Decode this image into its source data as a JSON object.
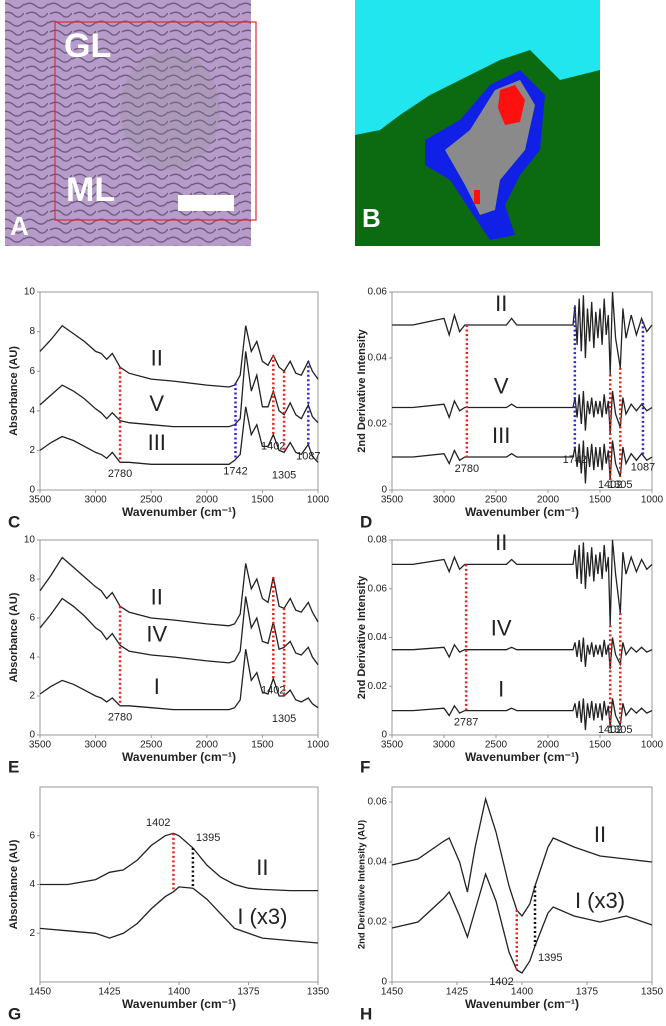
{
  "micrographs": [
    {
      "panel": "A",
      "labels": [
        "GL",
        "ML"
      ]
    },
    {
      "panel": "B"
    }
  ],
  "chart_data": [
    {
      "type": "line",
      "panel": "C",
      "xlabel": "Wavenumber (cm⁻¹)",
      "ylabel": "Absorbance (AU)",
      "xlim": [
        3500,
        1000
      ],
      "xticks": [
        3500,
        3000,
        2500,
        2000,
        1500,
        1000
      ],
      "ylim": [
        0,
        10
      ],
      "yticks": [
        0,
        2,
        4,
        6,
        8,
        10
      ],
      "x": [
        3500,
        3400,
        3300,
        3200,
        3100,
        3000,
        2950,
        2900,
        2850,
        2780,
        2700,
        2500,
        2300,
        2000,
        1800,
        1750,
        1700,
        1650,
        1600,
        1550,
        1500,
        1450,
        1402,
        1350,
        1305,
        1250,
        1200,
        1150,
        1087,
        1050,
        1000
      ],
      "series": [
        {
          "name": "II",
          "color": "#222222",
          "values": [
            7.0,
            7.6,
            8.3,
            7.9,
            7.5,
            7.0,
            6.9,
            6.6,
            6.9,
            6.2,
            5.9,
            5.6,
            5.5,
            5.3,
            5.2,
            5.3,
            5.8,
            8.3,
            7.0,
            7.5,
            6.5,
            6.3,
            6.8,
            6.2,
            6.0,
            6.5,
            5.9,
            5.8,
            6.5,
            6.0,
            5.6
          ]
        },
        {
          "name": "V",
          "color": "#222222",
          "values": [
            4.3,
            4.8,
            5.3,
            5.0,
            4.6,
            4.1,
            3.9,
            3.6,
            3.9,
            3.5,
            3.4,
            3.3,
            3.2,
            3.2,
            3.2,
            3.3,
            3.6,
            7.0,
            5.0,
            5.8,
            4.2,
            4.2,
            5.0,
            4.0,
            3.8,
            4.4,
            3.8,
            3.6,
            4.3,
            3.7,
            3.4
          ]
        },
        {
          "name": "III",
          "color": "#222222",
          "values": [
            2.0,
            2.4,
            2.7,
            2.5,
            2.2,
            1.9,
            1.8,
            1.6,
            1.9,
            1.4,
            1.4,
            1.3,
            1.3,
            1.3,
            1.3,
            1.5,
            1.8,
            4.2,
            2.8,
            3.3,
            2.2,
            2.2,
            2.8,
            2.0,
            1.9,
            2.4,
            1.9,
            1.8,
            2.3,
            1.7,
            1.4
          ]
        }
      ],
      "markers": [
        {
          "x": 2780,
          "color": "#e8221c"
        },
        {
          "x": 1742,
          "color": "#2a2ad0"
        },
        {
          "x": 1402,
          "color": "#e8221c"
        },
        {
          "x": 1305,
          "color": "#e8221c"
        },
        {
          "x": 1087,
          "color": "#2a2ad0"
        }
      ]
    },
    {
      "type": "line",
      "panel": "D",
      "xlabel": "Wavenumber (cm⁻¹)",
      "ylabel": "2nd Derivative Intensity",
      "xlim": [
        3500,
        1000
      ],
      "xticks": [
        3500,
        3000,
        2500,
        2000,
        1500,
        1000
      ],
      "ylim": [
        0,
        0.06
      ],
      "yticks": [
        0,
        0.02,
        0.04,
        0.06
      ],
      "x": [
        3500,
        3300,
        3000,
        2950,
        2900,
        2850,
        2800,
        2700,
        2400,
        2350,
        2300,
        2000,
        1760,
        1740,
        1720,
        1700,
        1680,
        1660,
        1640,
        1620,
        1600,
        1580,
        1560,
        1540,
        1520,
        1500,
        1480,
        1460,
        1440,
        1420,
        1402,
        1380,
        1350,
        1305,
        1280,
        1250,
        1200,
        1150,
        1100,
        1050,
        1000
      ],
      "series": [
        {
          "name": "II",
          "color": "#222222",
          "values": [
            0.05,
            0.05,
            0.052,
            0.047,
            0.053,
            0.048,
            0.05,
            0.05,
            0.05,
            0.052,
            0.05,
            0.05,
            0.05,
            0.056,
            0.044,
            0.058,
            0.042,
            0.059,
            0.04,
            0.055,
            0.045,
            0.057,
            0.043,
            0.054,
            0.046,
            0.055,
            0.044,
            0.058,
            0.047,
            0.053,
            0.035,
            0.06,
            0.046,
            0.037,
            0.055,
            0.046,
            0.053,
            0.047,
            0.052,
            0.048,
            0.05
          ]
        },
        {
          "name": "V",
          "color": "#222222",
          "values": [
            0.025,
            0.025,
            0.026,
            0.022,
            0.027,
            0.024,
            0.025,
            0.025,
            0.025,
            0.026,
            0.025,
            0.025,
            0.025,
            0.028,
            0.022,
            0.029,
            0.02,
            0.03,
            0.018,
            0.027,
            0.023,
            0.028,
            0.022,
            0.027,
            0.023,
            0.027,
            0.022,
            0.029,
            0.023,
            0.027,
            0.017,
            0.03,
            0.023,
            0.019,
            0.028,
            0.023,
            0.026,
            0.024,
            0.026,
            0.024,
            0.025
          ]
        },
        {
          "name": "III",
          "color": "#222222",
          "values": [
            0.01,
            0.01,
            0.011,
            0.008,
            0.012,
            0.009,
            0.01,
            0.01,
            0.01,
            0.011,
            0.01,
            0.01,
            0.01,
            0.013,
            0.007,
            0.014,
            0.005,
            0.015,
            0.002,
            0.013,
            0.007,
            0.014,
            0.006,
            0.013,
            0.007,
            0.013,
            0.006,
            0.014,
            0.008,
            0.012,
            0.003,
            0.015,
            0.008,
            0.004,
            0.013,
            0.008,
            0.011,
            0.009,
            0.011,
            0.009,
            0.01
          ]
        }
      ],
      "markers": [
        {
          "x": 2780,
          "color": "#e8221c"
        },
        {
          "x": 1742,
          "color": "#2a2ad0"
        },
        {
          "x": 1402,
          "color": "#e8221c"
        },
        {
          "x": 1305,
          "color": "#e8221c"
        },
        {
          "x": 1087,
          "color": "#2a2ad0"
        }
      ]
    },
    {
      "type": "line",
      "panel": "E",
      "xlabel": "Wavenumber (cm⁻¹)",
      "ylabel": "Absorbance (AU)",
      "xlim": [
        3500,
        1000
      ],
      "xticks": [
        3500,
        3000,
        2500,
        2000,
        1500,
        1000
      ],
      "ylim": [
        0,
        10
      ],
      "yticks": [
        0,
        2,
        4,
        6,
        8,
        10
      ],
      "x": [
        3500,
        3400,
        3300,
        3200,
        3100,
        3000,
        2950,
        2900,
        2850,
        2780,
        2700,
        2500,
        2300,
        2000,
        1800,
        1750,
        1700,
        1650,
        1600,
        1550,
        1500,
        1450,
        1402,
        1350,
        1305,
        1250,
        1200,
        1150,
        1087,
        1050,
        1000
      ],
      "series": [
        {
          "name": "II",
          "color": "#222222",
          "values": [
            7.4,
            8.2,
            9.1,
            8.6,
            8.1,
            7.6,
            7.4,
            7.0,
            7.3,
            6.6,
            6.3,
            6.0,
            5.9,
            5.7,
            5.6,
            5.7,
            6.2,
            8.8,
            7.5,
            8.0,
            7.0,
            6.8,
            8.1,
            6.6,
            6.5,
            7.0,
            6.4,
            6.3,
            6.8,
            6.3,
            5.8
          ]
        },
        {
          "name": "IV",
          "color": "#222222",
          "values": [
            5.5,
            6.2,
            7.0,
            6.6,
            6.1,
            5.5,
            5.3,
            4.9,
            5.2,
            4.6,
            4.3,
            4.1,
            4.0,
            3.8,
            3.7,
            3.8,
            4.3,
            7.1,
            5.5,
            6.0,
            4.8,
            4.7,
            5.8,
            4.4,
            4.5,
            4.8,
            4.2,
            4.1,
            4.5,
            4.0,
            3.6
          ]
        },
        {
          "name": "I",
          "color": "#222222",
          "values": [
            2.1,
            2.5,
            2.8,
            2.6,
            2.3,
            2.0,
            1.9,
            1.7,
            1.9,
            1.5,
            1.5,
            1.4,
            1.3,
            1.3,
            1.3,
            1.4,
            1.8,
            4.4,
            2.8,
            3.2,
            2.2,
            2.1,
            2.9,
            2.0,
            2.0,
            2.3,
            1.8,
            1.7,
            1.9,
            1.6,
            1.4
          ]
        }
      ],
      "markers": [
        {
          "x": 2780,
          "color": "#e8221c"
        },
        {
          "x": 1402,
          "color": "#e8221c"
        },
        {
          "x": 1305,
          "color": "#e8221c"
        }
      ]
    },
    {
      "type": "line",
      "panel": "F",
      "xlabel": "Wavenumber (cm⁻¹)",
      "ylabel": "2nd Derivative Intensity",
      "xlim": [
        3500,
        1000
      ],
      "xticks": [
        3500,
        3000,
        2500,
        2000,
        1500,
        1000
      ],
      "ylim": [
        0,
        0.08
      ],
      "yticks": [
        0,
        0.02,
        0.04,
        0.06,
        0.08
      ],
      "x": [
        3500,
        3300,
        3000,
        2950,
        2900,
        2850,
        2800,
        2700,
        2400,
        2350,
        2300,
        2000,
        1760,
        1740,
        1720,
        1700,
        1680,
        1660,
        1640,
        1620,
        1600,
        1580,
        1560,
        1540,
        1520,
        1500,
        1480,
        1460,
        1440,
        1420,
        1402,
        1380,
        1350,
        1305,
        1280,
        1250,
        1200,
        1150,
        1100,
        1050,
        1000
      ],
      "series": [
        {
          "name": "II",
          "color": "#222222",
          "values": [
            0.07,
            0.07,
            0.072,
            0.067,
            0.073,
            0.068,
            0.07,
            0.07,
            0.07,
            0.072,
            0.07,
            0.07,
            0.07,
            0.076,
            0.064,
            0.078,
            0.062,
            0.079,
            0.06,
            0.075,
            0.065,
            0.077,
            0.063,
            0.074,
            0.066,
            0.075,
            0.064,
            0.078,
            0.067,
            0.073,
            0.045,
            0.08,
            0.066,
            0.05,
            0.075,
            0.066,
            0.073,
            0.067,
            0.072,
            0.068,
            0.07
          ]
        },
        {
          "name": "IV",
          "color": "#222222",
          "values": [
            0.035,
            0.035,
            0.036,
            0.032,
            0.037,
            0.034,
            0.035,
            0.035,
            0.035,
            0.036,
            0.035,
            0.035,
            0.035,
            0.038,
            0.032,
            0.039,
            0.03,
            0.04,
            0.028,
            0.037,
            0.033,
            0.038,
            0.032,
            0.037,
            0.033,
            0.037,
            0.032,
            0.039,
            0.033,
            0.037,
            0.027,
            0.04,
            0.033,
            0.029,
            0.038,
            0.033,
            0.036,
            0.034,
            0.036,
            0.034,
            0.035
          ]
        },
        {
          "name": "I",
          "color": "#222222",
          "values": [
            0.01,
            0.01,
            0.011,
            0.008,
            0.012,
            0.009,
            0.01,
            0.01,
            0.01,
            0.011,
            0.01,
            0.01,
            0.01,
            0.013,
            0.007,
            0.014,
            0.005,
            0.015,
            0.002,
            0.013,
            0.007,
            0.014,
            0.006,
            0.013,
            0.007,
            0.013,
            0.006,
            0.014,
            0.008,
            0.012,
            0.003,
            0.015,
            0.008,
            0.004,
            0.013,
            0.008,
            0.011,
            0.009,
            0.011,
            0.009,
            0.01
          ]
        }
      ],
      "markers": [
        {
          "x": 2787,
          "color": "#e8221c"
        },
        {
          "x": 1402,
          "color": "#e8221c"
        },
        {
          "x": 1305,
          "color": "#e8221c"
        }
      ]
    },
    {
      "type": "line",
      "panel": "G",
      "xlabel": "Wavenumber (cm⁻¹)",
      "ylabel": "Absorbance (AU)",
      "xlim": [
        1450,
        1350
      ],
      "xticks": [
        1450,
        1425,
        1400,
        1375,
        1350
      ],
      "ylim": [
        0,
        8
      ],
      "yticks": [
        2,
        4,
        6
      ],
      "x": [
        1450,
        1440,
        1430,
        1425,
        1420,
        1415,
        1410,
        1405,
        1402,
        1400,
        1395,
        1390,
        1385,
        1380,
        1375,
        1370,
        1360,
        1350
      ],
      "series": [
        {
          "name": "II",
          "color": "#222222",
          "values": [
            4.0,
            4.0,
            4.2,
            4.5,
            4.6,
            5.0,
            5.6,
            6.0,
            6.1,
            6.0,
            5.5,
            4.8,
            4.3,
            4.0,
            3.85,
            3.8,
            3.75,
            3.75
          ]
        },
        {
          "name": "I (x3)",
          "color": "#222222",
          "values": [
            2.2,
            2.1,
            2.0,
            1.8,
            2.0,
            2.4,
            3.0,
            3.5,
            3.7,
            3.9,
            3.85,
            3.4,
            2.8,
            2.2,
            2.0,
            1.8,
            1.7,
            1.6
          ]
        }
      ],
      "markers": [
        {
          "x": 1402,
          "color": "#e8221c"
        },
        {
          "x": 1395,
          "color": "#111111"
        }
      ]
    },
    {
      "type": "line",
      "panel": "H",
      "xlabel": "Wavenumber (cm⁻¹)",
      "ylabel": "2nd Derivative Intensity (AU)",
      "xlim": [
        1450,
        1350
      ],
      "xticks": [
        1450,
        1425,
        1400,
        1375,
        1350
      ],
      "ylim": [
        0,
        0.065
      ],
      "yticks": [
        0,
        0.02,
        0.04,
        0.06
      ],
      "x": [
        1450,
        1440,
        1430,
        1428,
        1424,
        1421,
        1418,
        1414,
        1410,
        1405,
        1402,
        1400,
        1397,
        1395,
        1390,
        1388,
        1380,
        1370,
        1360,
        1350
      ],
      "series": [
        {
          "name": "II",
          "color": "#222222",
          "values": [
            0.039,
            0.041,
            0.047,
            0.048,
            0.04,
            0.03,
            0.045,
            0.061,
            0.05,
            0.032,
            0.024,
            0.022,
            0.026,
            0.032,
            0.045,
            0.048,
            0.045,
            0.042,
            0.041,
            0.04
          ]
        },
        {
          "name": "I (x3)",
          "color": "#222222",
          "values": [
            0.018,
            0.02,
            0.028,
            0.03,
            0.022,
            0.015,
            0.024,
            0.036,
            0.027,
            0.01,
            0.004,
            0.003,
            0.007,
            0.012,
            0.023,
            0.025,
            0.022,
            0.02,
            0.022,
            0.019
          ]
        }
      ],
      "markers": [
        {
          "x": 1402,
          "color": "#e8221c"
        },
        {
          "x": 1395,
          "color": "#111111"
        }
      ]
    }
  ]
}
